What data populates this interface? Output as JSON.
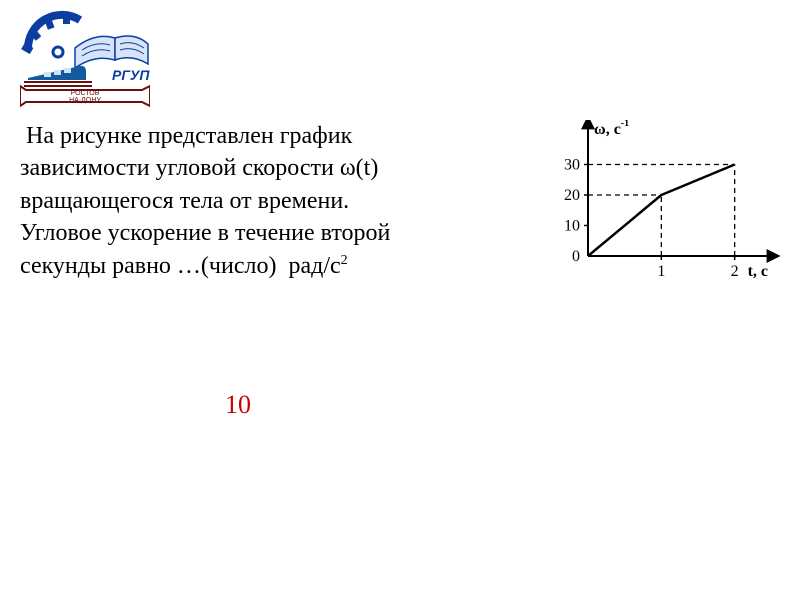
{
  "logo": {
    "acronym": "РГУПС",
    "banner_top": "РОСТОВ",
    "banner_bottom": "НА·ДОНУ",
    "gear_color": "#0b3da3",
    "book_page_color": "#d7e4f5",
    "book_outline_color": "#0b3da3",
    "train_color": "#135a9e",
    "train_window_color": "#cfe3f6",
    "rail_color": "#6a0f0f",
    "banner_fill": "#ffffff",
    "banner_stroke": "#6a0f0f",
    "banner_text_color": "#6a0f0f",
    "acronym_color": "#0b3da3"
  },
  "problem": {
    "line1": "На рисунке представлен график",
    "line2": "зависимости угловой скорости ω(t)",
    "line3": "вращающегося тела от времени.",
    "line4": "Угловое ускорение в течение второй",
    "line5_prefix": "секунды равно …(число)",
    "unit_base": "рад/с",
    "unit_exp": "2",
    "text_fontsize": 24
  },
  "answer": {
    "value": "10",
    "color": "#cc0000",
    "fontsize": 26
  },
  "chart": {
    "type": "line",
    "background_color": "#ffffff",
    "axis_color": "#000000",
    "line_color": "#000000",
    "line_width": 2.5,
    "dash_color": "#000000",
    "dash_pattern": "5,4",
    "tick_fontsize": 16,
    "label_fontsize": 16,
    "y_axis_label": "ω, с",
    "y_axis_label_sup": "-1",
    "x_axis_label": "t, с",
    "xlim": [
      0,
      2.4
    ],
    "ylim": [
      0,
      40
    ],
    "x_ticks": [
      1,
      2
    ],
    "y_ticks": [
      0,
      10,
      20,
      30
    ],
    "origin_label": "0",
    "points": [
      {
        "t": 0,
        "w": 0
      },
      {
        "t": 1,
        "w": 20
      },
      {
        "t": 2,
        "w": 30
      }
    ],
    "guide_lines": [
      {
        "from_t": 1,
        "from_w": 0,
        "to_t": 1,
        "to_w": 20
      },
      {
        "from_t": 0,
        "from_w": 20,
        "to_t": 1,
        "to_w": 20
      },
      {
        "from_t": 2,
        "from_w": 0,
        "to_t": 2,
        "to_w": 30
      },
      {
        "from_t": 0,
        "from_w": 30,
        "to_t": 2,
        "to_w": 30
      }
    ]
  }
}
